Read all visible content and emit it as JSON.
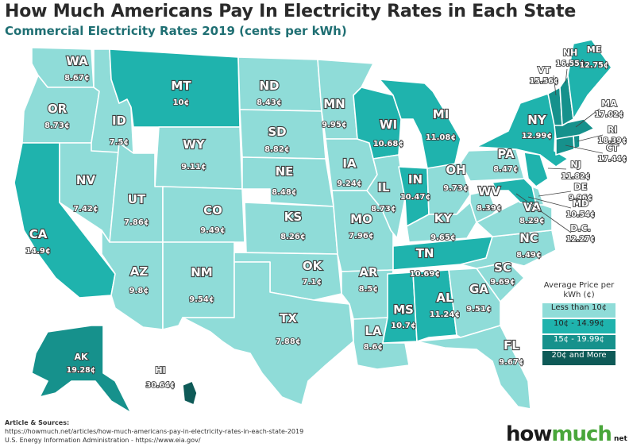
{
  "header": {
    "title": "How Much Americans Pay In Electricity Rates in Each State",
    "subtitle": "Commercial Electricity Rates 2019 (cents per kWh)"
  },
  "colors": {
    "tier1": "#8fdcd8",
    "tier2": "#1fb3ad",
    "tier3": "#16918c",
    "tier4": "#0e5a57",
    "land_outline": "#ffffff",
    "label_outline": "#3d3d3d"
  },
  "legend": {
    "title": "Average Price per kWh (¢)",
    "items": [
      {
        "label": "Less than 10¢",
        "tier": "tier1"
      },
      {
        "label": "10¢ - 14.99¢",
        "tier": "tier2"
      },
      {
        "label": "15¢ - 19.99¢",
        "tier": "tier3"
      },
      {
        "label": "20¢ and More",
        "tier": "tier4"
      }
    ]
  },
  "states": [
    {
      "abbr": "WA",
      "price": "8.67¢",
      "tier": "tier1"
    },
    {
      "abbr": "OR",
      "price": "8.73¢",
      "tier": "tier1"
    },
    {
      "abbr": "CA",
      "price": "14.9¢",
      "tier": "tier2"
    },
    {
      "abbr": "NV",
      "price": "7.42¢",
      "tier": "tier1"
    },
    {
      "abbr": "ID",
      "price": "7.5¢",
      "tier": "tier1"
    },
    {
      "abbr": "MT",
      "price": "10¢",
      "tier": "tier2"
    },
    {
      "abbr": "WY",
      "price": "9.11¢",
      "tier": "tier1"
    },
    {
      "abbr": "UT",
      "price": "7.86¢",
      "tier": "tier1"
    },
    {
      "abbr": "AZ",
      "price": "9.8¢",
      "tier": "tier1"
    },
    {
      "abbr": "CO",
      "price": "9.49¢",
      "tier": "tier1"
    },
    {
      "abbr": "NM",
      "price": "9.54¢",
      "tier": "tier1"
    },
    {
      "abbr": "ND",
      "price": "8.43¢",
      "tier": "tier1"
    },
    {
      "abbr": "SD",
      "price": "8.82¢",
      "tier": "tier1"
    },
    {
      "abbr": "NE",
      "price": "8.48¢",
      "tier": "tier1"
    },
    {
      "abbr": "KS",
      "price": "8.26¢",
      "tier": "tier1"
    },
    {
      "abbr": "OK",
      "price": "7.1¢",
      "tier": "tier1"
    },
    {
      "abbr": "TX",
      "price": "7.88¢",
      "tier": "tier1"
    },
    {
      "abbr": "MN",
      "price": "9.95¢",
      "tier": "tier1"
    },
    {
      "abbr": "IA",
      "price": "9.24¢",
      "tier": "tier1"
    },
    {
      "abbr": "MO",
      "price": "7.96¢",
      "tier": "tier1"
    },
    {
      "abbr": "AR",
      "price": "8.5¢",
      "tier": "tier1"
    },
    {
      "abbr": "LA",
      "price": "8.6¢",
      "tier": "tier1"
    },
    {
      "abbr": "WI",
      "price": "10.68¢",
      "tier": "tier2"
    },
    {
      "abbr": "IL",
      "price": "8.73¢",
      "tier": "tier1"
    },
    {
      "abbr": "MI",
      "price": "11.08¢",
      "tier": "tier2"
    },
    {
      "abbr": "IN",
      "price": "10.47¢",
      "tier": "tier2"
    },
    {
      "abbr": "OH",
      "price": "9.73¢",
      "tier": "tier1"
    },
    {
      "abbr": "KY",
      "price": "9.65¢",
      "tier": "tier1"
    },
    {
      "abbr": "TN",
      "price": "10.69¢",
      "tier": "tier2"
    },
    {
      "abbr": "MS",
      "price": "10.7¢",
      "tier": "tier2"
    },
    {
      "abbr": "AL",
      "price": "11.24¢",
      "tier": "tier2"
    },
    {
      "abbr": "GA",
      "price": "9.51¢",
      "tier": "tier1"
    },
    {
      "abbr": "FL",
      "price": "9.67¢",
      "tier": "tier1"
    },
    {
      "abbr": "SC",
      "price": "9.69¢",
      "tier": "tier1"
    },
    {
      "abbr": "NC",
      "price": "8.49¢",
      "tier": "tier1"
    },
    {
      "abbr": "VA",
      "price": "8.29¢",
      "tier": "tier1"
    },
    {
      "abbr": "WV",
      "price": "8.39¢",
      "tier": "tier1"
    },
    {
      "abbr": "PA",
      "price": "8.47¢",
      "tier": "tier1"
    },
    {
      "abbr": "NY",
      "price": "12.99¢",
      "tier": "tier2"
    },
    {
      "abbr": "NJ",
      "price": "11.82¢",
      "tier": "tier2"
    },
    {
      "abbr": "DE",
      "price": "9.96¢",
      "tier": "tier1"
    },
    {
      "abbr": "MD",
      "price": "10.54¢",
      "tier": "tier2"
    },
    {
      "abbr": "D.C.",
      "price": "12.27¢",
      "tier": "tier2"
    },
    {
      "abbr": "CT",
      "price": "17.44¢",
      "tier": "tier3"
    },
    {
      "abbr": "RI",
      "price": "18.39¢",
      "tier": "tier3"
    },
    {
      "abbr": "MA",
      "price": "17.02¢",
      "tier": "tier3"
    },
    {
      "abbr": "VT",
      "price": "15.56¢",
      "tier": "tier3"
    },
    {
      "abbr": "NH",
      "price": "16.55¢",
      "tier": "tier3"
    },
    {
      "abbr": "ME",
      "price": "12.75¢",
      "tier": "tier2"
    },
    {
      "abbr": "AK",
      "price": "19.28¢",
      "tier": "tier3"
    },
    {
      "abbr": "HI",
      "price": "30.64¢",
      "tier": "tier4"
    }
  ],
  "sources": {
    "heading": "Article & Sources:",
    "line1": "https://howmuch.net/articles/how-much-americans-pay-in-electricity-rates-in-each-state-2019",
    "line2": "U.S. Energy Information Administration - https://www.eia.gov/"
  },
  "logo": {
    "part1": "how",
    "part2": "much",
    "suffix": "net"
  }
}
